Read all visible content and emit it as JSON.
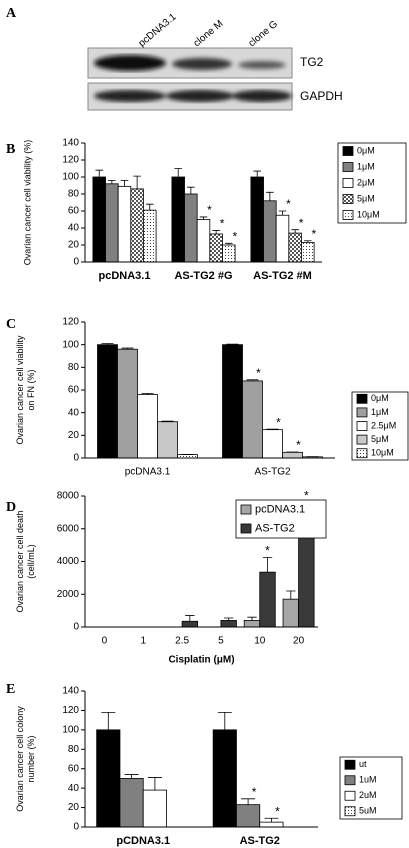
{
  "blot": {
    "panel_label": "A",
    "lanes": [
      "pcDNA3.1",
      "clone M",
      "clone G"
    ],
    "bands": [
      "TG2",
      "GAPDH"
    ]
  },
  "chart_data": [
    {
      "type": "bar",
      "panel_label": "B",
      "ylabel": [
        "Ovarian cancer cell viability (%)"
      ],
      "categories": [
        "pcDNA3.1",
        "AS-TG2 #G",
        "AS-TG2 #M"
      ],
      "series": [
        {
          "name": "0μM",
          "color": "#000000",
          "values": [
            100,
            100,
            100
          ],
          "errors": [
            8,
            10,
            7
          ],
          "annotations": [
            null,
            null,
            null
          ]
        },
        {
          "name": "1μM",
          "color": "#808080",
          "values": [
            92,
            80,
            72
          ],
          "errors": [
            4,
            8,
            10
          ],
          "annotations": [
            null,
            null,
            null
          ]
        },
        {
          "name": "2μM",
          "color": "#ffffff",
          "values": [
            89,
            50,
            55
          ],
          "errors": [
            7,
            3,
            5
          ],
          "annotations": [
            null,
            "*",
            "*"
          ]
        },
        {
          "name": "5μM",
          "color": "#ffffff",
          "pattern": "checker",
          "values": [
            86,
            33,
            34
          ],
          "errors": [
            15,
            4,
            4
          ],
          "annotations": [
            null,
            "*",
            "*"
          ]
        },
        {
          "name": "10μM",
          "color": "#ffffff",
          "pattern": "dots",
          "values": [
            61,
            20,
            23
          ],
          "errors": [
            7,
            2,
            2
          ],
          "annotations": [
            null,
            "*",
            "*"
          ]
        }
      ],
      "ylim": [
        0,
        140
      ],
      "yticks": [
        0,
        20,
        40,
        60,
        80,
        100,
        120,
        140
      ]
    },
    {
      "type": "bar",
      "panel_label": "C",
      "ylabel": [
        "Ovarian cancer cell viability",
        "on FN (%)"
      ],
      "categories": [
        "pcDNA3.1",
        "AS-TG2"
      ],
      "series": [
        {
          "name": "0μM",
          "color": "#000000",
          "values": [
            100,
            100
          ],
          "errors": [
            1,
            0.5
          ],
          "annotations": [
            null,
            null
          ]
        },
        {
          "name": "1μM",
          "color": "#a0a0a0",
          "values": [
            96,
            68
          ],
          "errors": [
            1,
            1
          ],
          "annotations": [
            null,
            "*"
          ]
        },
        {
          "name": "2.5μM",
          "color": "#ffffff",
          "values": [
            56,
            25
          ],
          "errors": [
            1,
            0.5
          ],
          "annotations": [
            null,
            "*"
          ]
        },
        {
          "name": "5μM",
          "color": "#c8c8c8",
          "values": [
            32,
            5
          ],
          "errors": [
            0.5,
            0.3
          ],
          "annotations": [
            null,
            "*"
          ]
        },
        {
          "name": "10μM",
          "color": "#ffffff",
          "pattern": "dots",
          "values": [
            3,
            1
          ],
          "errors": [
            0.2,
            0.2
          ],
          "annotations": [
            null,
            null
          ]
        }
      ],
      "ylim": [
        0,
        120
      ],
      "yticks": [
        0,
        20,
        40,
        60,
        80,
        100,
        120
      ]
    },
    {
      "type": "bar",
      "panel_label": "D",
      "ylabel": [
        "Ovarian cancer cell death",
        "(cell/mL)"
      ],
      "xlabel": "Cisplatin (μM)",
      "categories": [
        "0",
        "1",
        "2.5",
        "5",
        "10",
        "20"
      ],
      "series": [
        {
          "name": "pcDNA3.1",
          "color": "#a6a6a6",
          "values": [
            0,
            0,
            0,
            0,
            400,
            1700
          ],
          "errors": [
            0,
            0,
            0,
            0,
            200,
            500
          ],
          "annotations": [
            null,
            null,
            null,
            null,
            null,
            null
          ]
        },
        {
          "name": "AS-TG2",
          "color": "#3a3a3a",
          "values": [
            0,
            0,
            350,
            400,
            3350,
            6600
          ],
          "errors": [
            0,
            0,
            350,
            150,
            900,
            1000
          ],
          "annotations": [
            null,
            null,
            null,
            null,
            "*",
            "*"
          ]
        }
      ],
      "ylim": [
        0,
        8000
      ],
      "yticks": [
        0,
        2000,
        4000,
        6000,
        8000
      ]
    },
    {
      "type": "bar",
      "panel_label": "E",
      "ylabel": [
        "Ovarian cancer cell colony",
        "number (%)"
      ],
      "categories": [
        "pCDNA3.1",
        "AS-TG2"
      ],
      "series": [
        {
          "name": "ut",
          "color": "#000000",
          "values": [
            100,
            100
          ],
          "errors": [
            18,
            18
          ],
          "annotations": [
            null,
            null
          ]
        },
        {
          "name": "1uM",
          "color": "#808080",
          "values": [
            50,
            23
          ],
          "errors": [
            4,
            6
          ],
          "annotations": [
            null,
            "*"
          ]
        },
        {
          "name": "2uM",
          "color": "#ffffff",
          "values": [
            38,
            5
          ],
          "errors": [
            13,
            4
          ],
          "annotations": [
            null,
            "*"
          ]
        },
        {
          "name": "5uM",
          "color": "#ffffff",
          "pattern": "dots",
          "values": [
            null,
            null
          ],
          "errors": [
            null,
            null
          ],
          "annotations": [
            null,
            null
          ]
        }
      ],
      "ylim": [
        0,
        140
      ],
      "yticks": [
        0,
        20,
        40,
        60,
        80,
        100,
        120,
        140
      ]
    }
  ]
}
